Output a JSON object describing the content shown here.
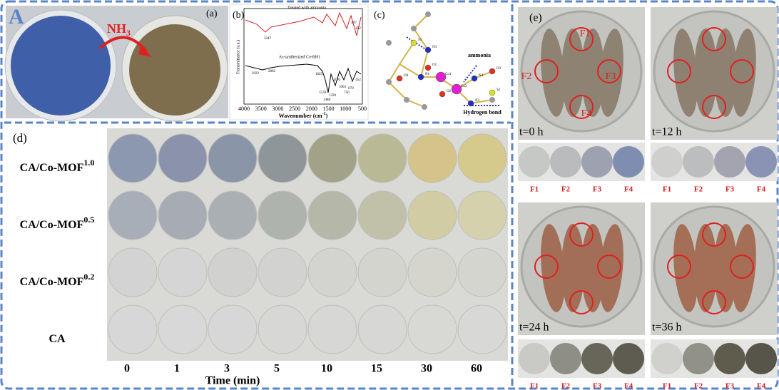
{
  "panel_a": {
    "letter": "A",
    "label": "(a)",
    "arrow_text": "NH",
    "arrow_sub": "3"
  },
  "panel_b": {
    "label": "(b)",
    "top_trace": "Treated with ammonia",
    "bottom_trace": "As-synthesized Co-BH1",
    "y_axis": "Transmittance (a.u.)",
    "x_axis": "Wavenumber (cm",
    "x_axis_sup": "-1",
    "x_axis_end": ")",
    "x_ticks": [
      "4000",
      "3500",
      "3000",
      "2500",
      "2000",
      "1500",
      "1000",
      "500"
    ],
    "peaks_top": [
      "3247",
      "497",
      "452"
    ],
    "peaks_bottom": [
      "2922",
      "2862",
      "1625",
      "1578",
      "1488",
      "1329",
      "1176",
      "1063",
      "756",
      "670",
      "452"
    ]
  },
  "panel_c": {
    "label": "(c)",
    "guest": "ammonia",
    "legend": "Hydrogen bond",
    "atoms": [
      "Co1",
      "Co2",
      "N1",
      "N2",
      "N3",
      "N4",
      "O1",
      "O2",
      "O3",
      "O4",
      "S1",
      "S2"
    ]
  },
  "panel_d": {
    "label": "(d)",
    "rows": [
      {
        "name": "CA/Co-MOF",
        "sup": "1.0"
      },
      {
        "name": "CA/Co-MOF",
        "sup": "0.5"
      },
      {
        "name": "CA/Co-MOF",
        "sup": "0.2"
      },
      {
        "name": "CA"
      }
    ],
    "times": [
      "0",
      "1",
      "3",
      "5",
      "10",
      "15",
      "30",
      "60"
    ],
    "x_axis": "Time (min)"
  },
  "panel_e": {
    "label": "(e)",
    "times": [
      "t=0 h",
      "t=12 h",
      "t=24 h",
      "t=36 h"
    ],
    "spots": [
      "F1",
      "F2",
      "F3",
      "F4"
    ]
  }
}
